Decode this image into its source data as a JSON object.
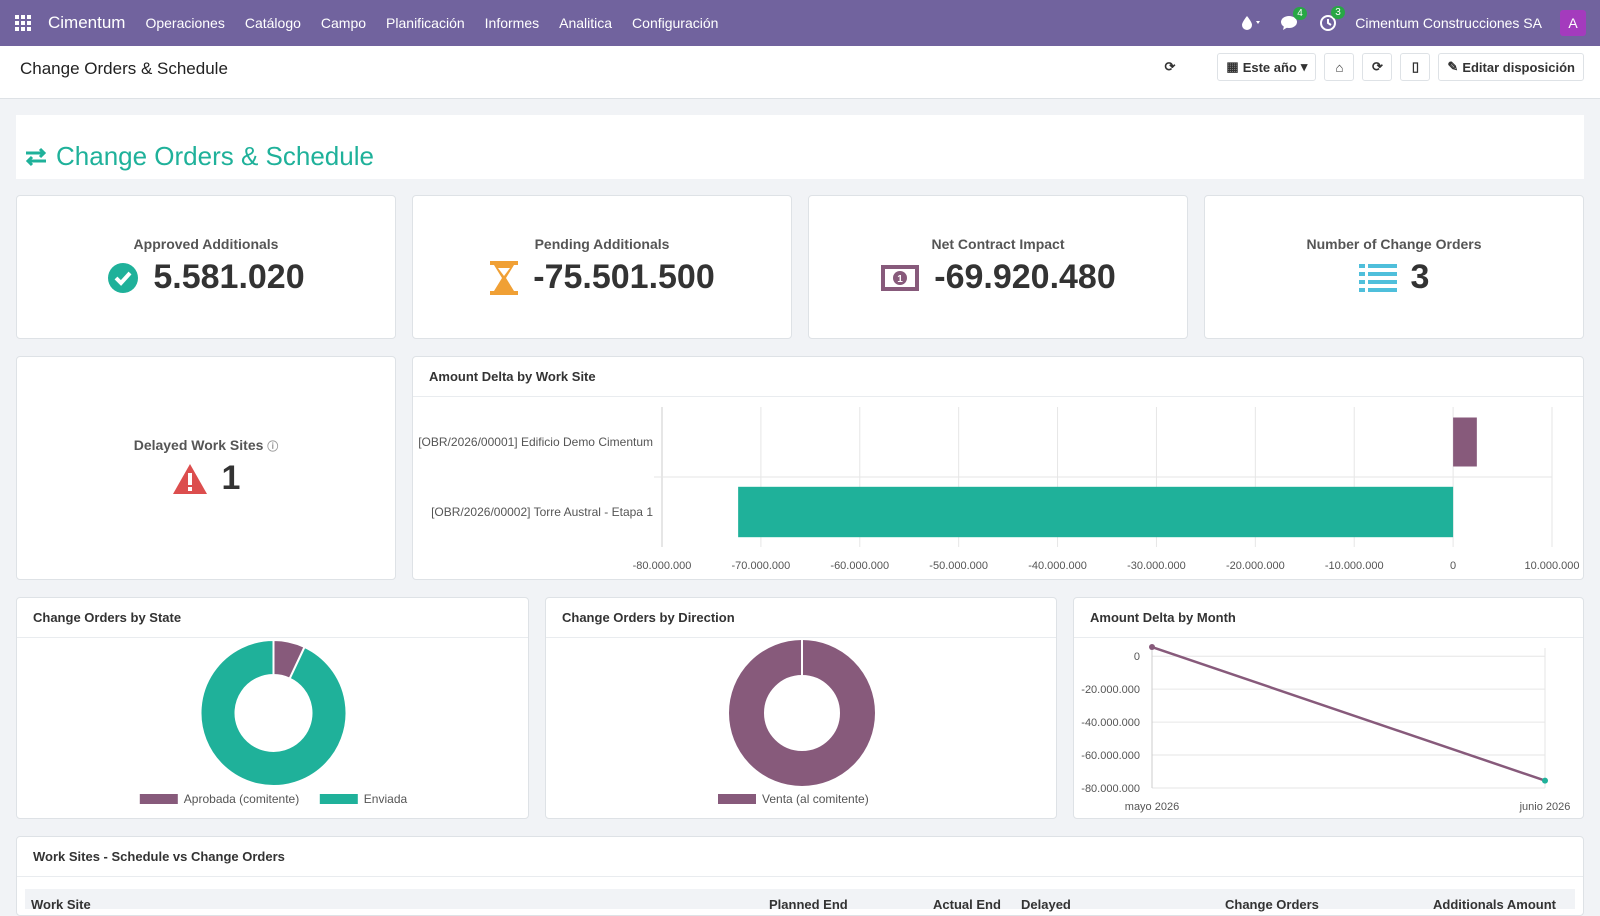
{
  "app": {
    "brand": "Cimentum",
    "company": "Cimentum Construcciones SA",
    "avatar": "A",
    "chat_count": "4",
    "activity_count": "3"
  },
  "menu": [
    "Operaciones",
    "Catálogo",
    "Campo",
    "Planificación",
    "Informes",
    "Analitica",
    "Configuración"
  ],
  "subbar": {
    "title": "Change Orders & Schedule",
    "period": "Este año",
    "edit": "Editar disposición"
  },
  "banner": {
    "title": "Change Orders & Schedule"
  },
  "kpis": [
    {
      "label": "Approved Additionals",
      "value": "5.581.020",
      "icon": "check-circle-icon",
      "color": "#1fb19a"
    },
    {
      "label": "Pending Additionals",
      "value": "-75.501.500",
      "icon": "hourglass-icon",
      "color": "#f0a035"
    },
    {
      "label": "Net Contract Impact",
      "value": "-69.920.480",
      "icon": "money-icon",
      "color": "#875a7b"
    },
    {
      "label": "Number of Change Orders",
      "value": "3",
      "icon": "list-icon",
      "color": "#4fbfdb"
    }
  ],
  "delayed": {
    "label": "Delayed Work Sites",
    "value": "1",
    "icon": "warning-icon",
    "color": "#dc4e4e"
  },
  "charts": {
    "delta_site": {
      "title": "Amount Delta by Work Site"
    },
    "by_state": {
      "title": "Change Orders by State"
    },
    "by_direction": {
      "title": "Change Orders by Direction"
    },
    "by_month": {
      "title": "Amount Delta by Month"
    }
  },
  "table": {
    "title": "Work Sites - Schedule vs Change Orders",
    "columns": [
      "Work Site",
      "Planned End",
      "Actual End",
      "Delayed",
      "Change Orders",
      "Additionals Amount"
    ]
  },
  "chart_data": [
    {
      "type": "bar",
      "orientation": "horizontal",
      "title": "Amount Delta by Work Site",
      "categories": [
        "[OBR/2026/00001] Edificio Demo Cimentum",
        "[OBR/2026/00002] Torre Austral - Etapa 1"
      ],
      "values": [
        2400000,
        -72300000
      ],
      "colors": [
        "#875a7b",
        "#1fb19a"
      ],
      "xlim": [
        -80000000,
        10000000
      ],
      "xticks": [
        "-80.000.000",
        "-70.000.000",
        "-60.000.000",
        "-50.000.000",
        "-40.000.000",
        "-30.000.000",
        "-20.000.000",
        "-10.000.000",
        "0",
        "10.000.000"
      ],
      "grid": true
    },
    {
      "type": "pie",
      "donut": true,
      "title": "Change Orders by State",
      "labels": [
        "Aprobada (comitente)",
        "Enviada"
      ],
      "values": [
        7,
        93
      ],
      "colors": [
        "#875a7b",
        "#1fb19a"
      ],
      "legend": "bottom"
    },
    {
      "type": "pie",
      "donut": true,
      "title": "Change Orders by Direction",
      "labels": [
        "Venta (al comitente)"
      ],
      "values": [
        100
      ],
      "colors": [
        "#875a7b"
      ],
      "legend": "bottom"
    },
    {
      "type": "line",
      "title": "Amount Delta by Month",
      "x": [
        "mayo 2026",
        "junio 2026"
      ],
      "values": [
        5581020,
        -75501500
      ],
      "ylim": [
        -80000000,
        5000000
      ],
      "yticks": [
        "0",
        "-20.000.000",
        "-40.000.000",
        "-60.000.000",
        "-80.000.000"
      ],
      "color": "#875a7b",
      "grid": true
    }
  ]
}
